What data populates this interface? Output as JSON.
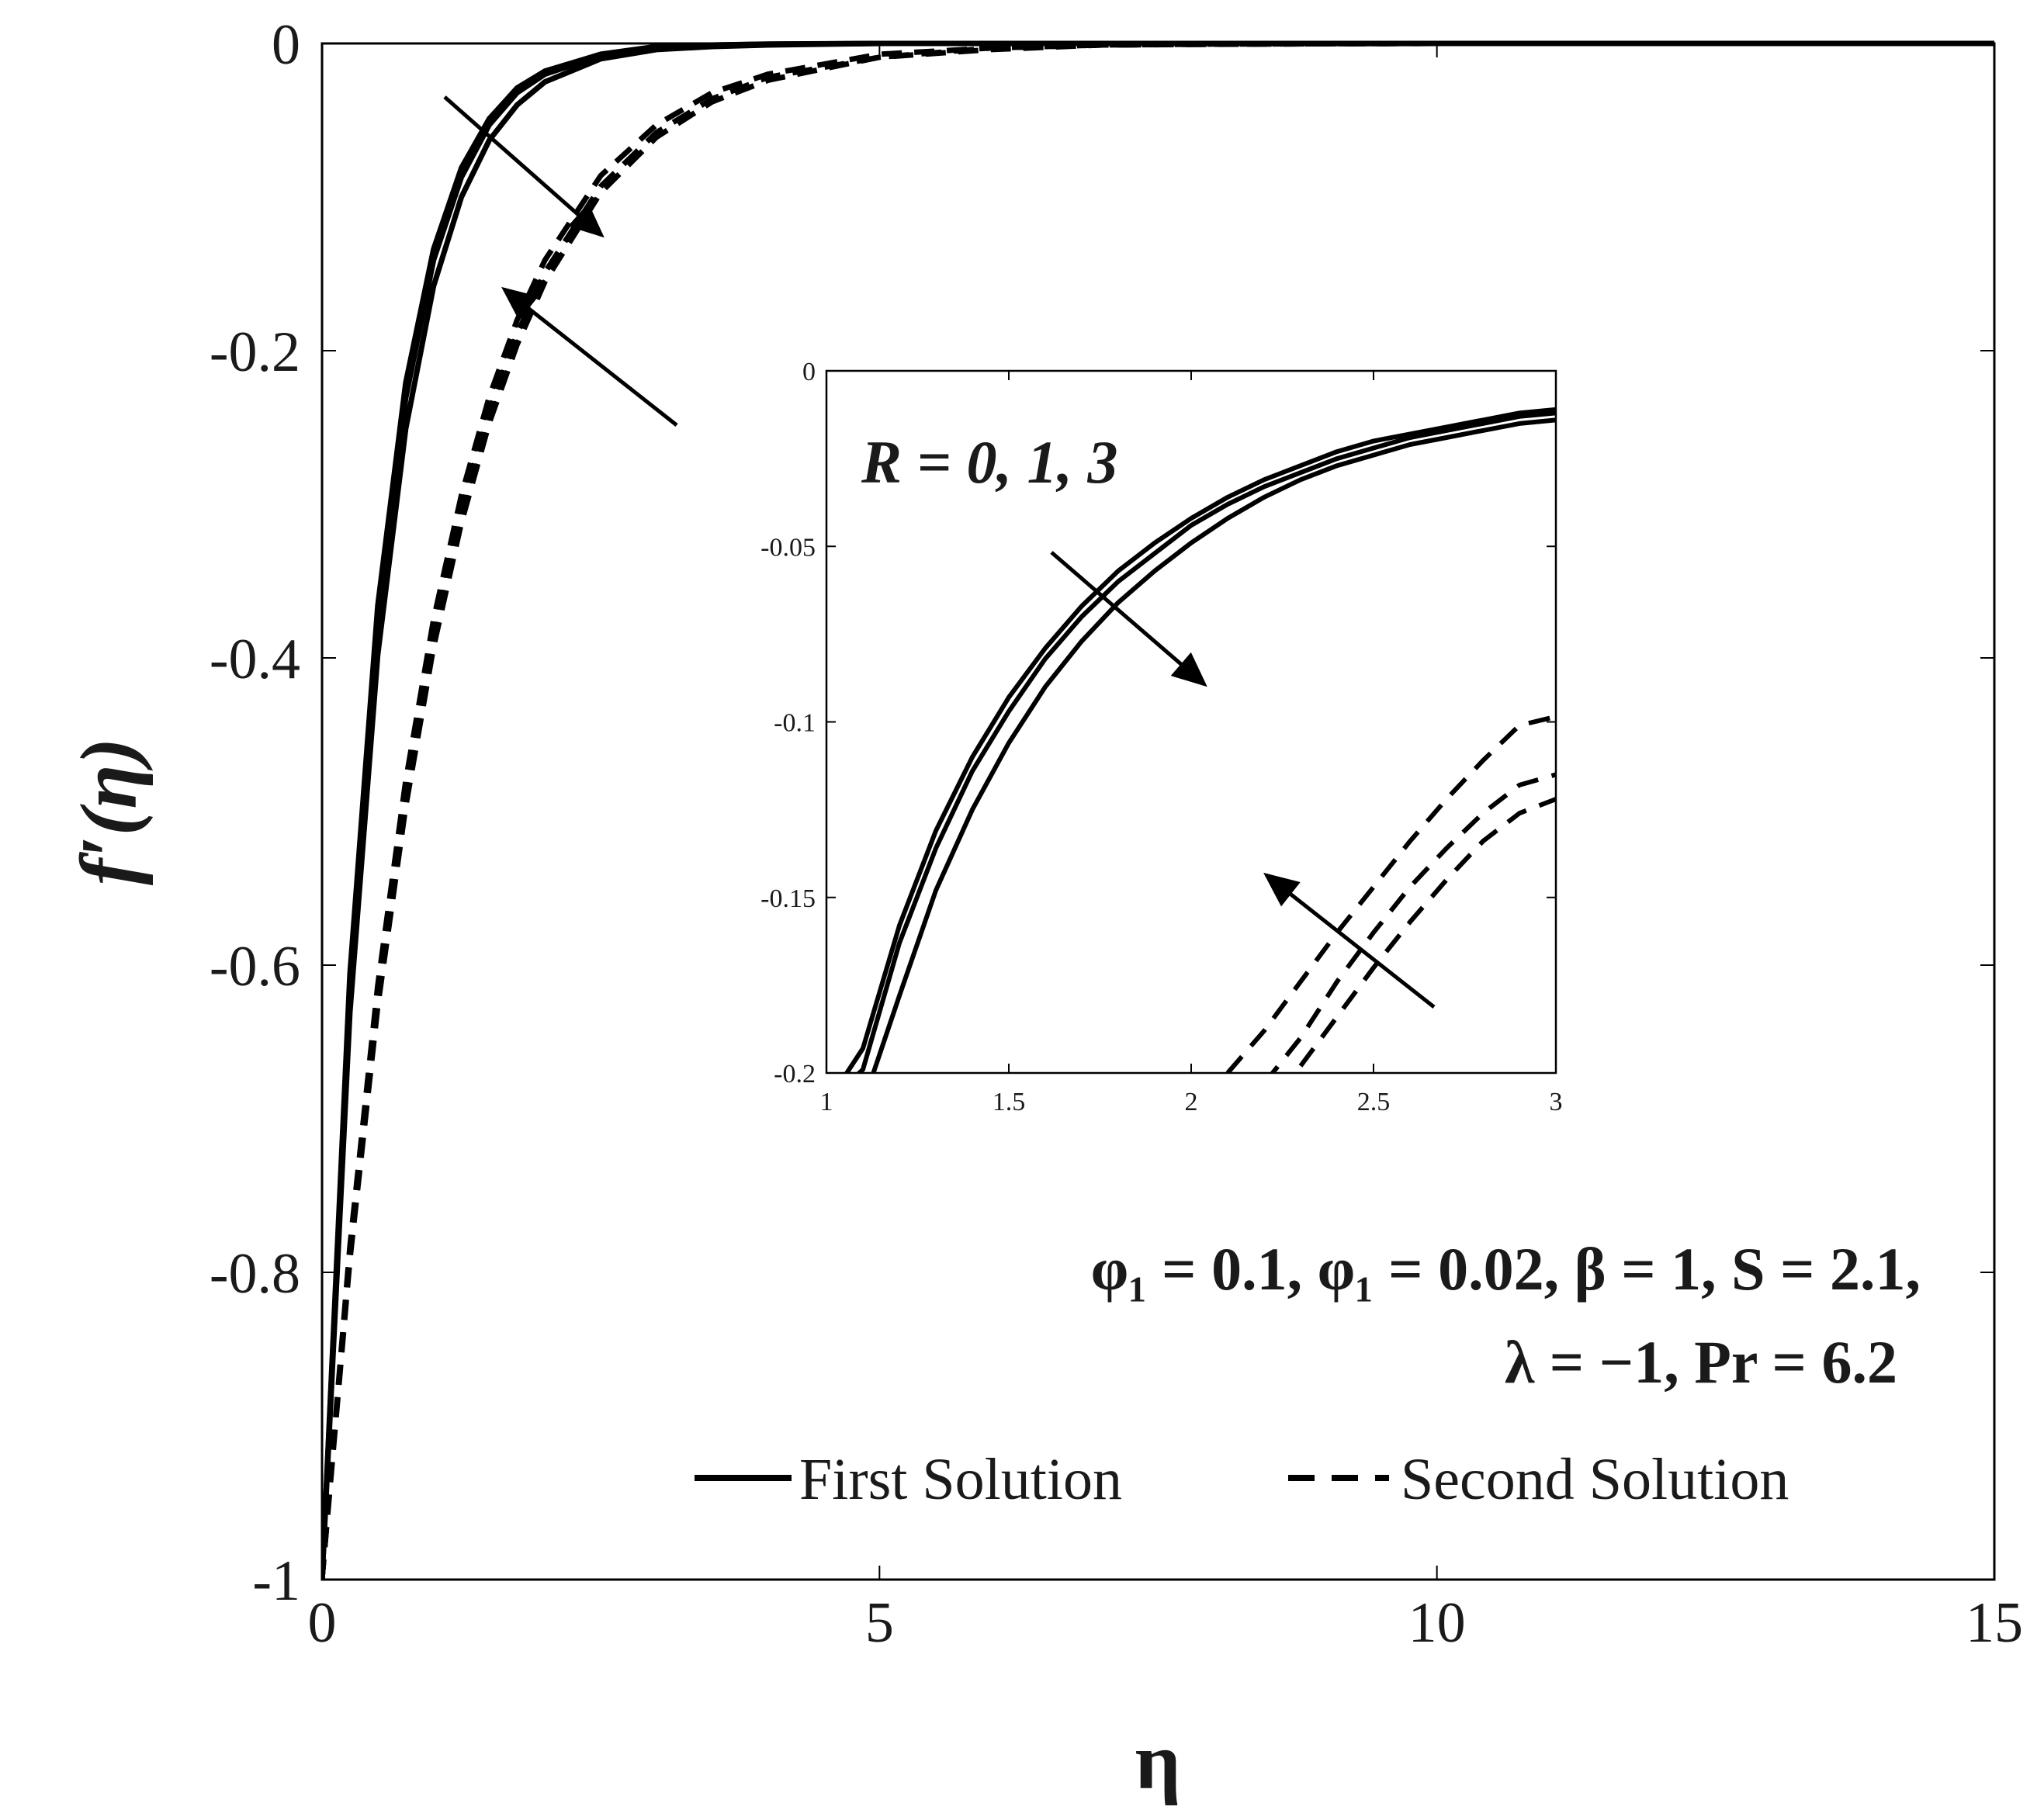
{
  "chart_data": [
    {
      "id": "main",
      "type": "line",
      "xlabel": "η",
      "ylabel": "f′(η)",
      "xlim": [
        0,
        15
      ],
      "ylim": [
        -1,
        0
      ],
      "xticks": [
        0,
        5,
        10,
        15
      ],
      "xtick_labels": [
        "0",
        "5",
        "10",
        "15"
      ],
      "yticks": [
        0,
        -0.2,
        -0.4,
        -0.6,
        -0.8,
        -1
      ],
      "ytick_labels": [
        "0",
        "-0.2",
        "-0.4",
        "-0.6",
        "-0.8",
        "-1"
      ],
      "grid": false,
      "legend": {
        "placement": "bottom-right",
        "entries": [
          {
            "label": "First Solution",
            "style": "solid"
          },
          {
            "label": "Second Solution",
            "style": "dashed"
          }
        ]
      },
      "annotations": {
        "line1": "φ₁ = 0.1, φ₁ = 0.02, β = 1, S = 2.1,",
        "line2": "λ = −1, Pr = 6.2"
      },
      "x": [
        0,
        0.25,
        0.5,
        0.75,
        1,
        1.25,
        1.5,
        1.75,
        2,
        2.5,
        3,
        3.5,
        4,
        5,
        6,
        7,
        8,
        9,
        10,
        12,
        15
      ],
      "series": [
        {
          "style": "solid",
          "values": [
            -1,
            -0.606,
            -0.366,
            -0.221,
            -0.134,
            -0.081,
            -0.049,
            -0.029,
            -0.018,
            -0.007,
            -0.002,
            -0.001,
            -0.0004,
            0,
            0,
            0,
            0,
            0,
            0,
            0,
            0
          ]
        },
        {
          "style": "solid",
          "values": [
            -1,
            -0.614,
            -0.376,
            -0.231,
            -0.141,
            -0.087,
            -0.053,
            -0.032,
            -0.02,
            -0.008,
            -0.003,
            -0.001,
            -0.0005,
            0,
            0,
            0,
            0,
            0,
            0,
            0,
            0
          ]
        },
        {
          "style": "solid",
          "values": [
            -1,
            -0.631,
            -0.398,
            -0.251,
            -0.158,
            -0.1,
            -0.063,
            -0.04,
            -0.025,
            -0.01,
            -0.004,
            -0.002,
            -0.001,
            0,
            0,
            0,
            0,
            0,
            0,
            0,
            0
          ]
        },
        {
          "style": "dashed",
          "values": [
            -1,
            -0.783,
            -0.613,
            -0.48,
            -0.375,
            -0.294,
            -0.23,
            -0.18,
            -0.141,
            -0.086,
            -0.053,
            -0.032,
            -0.02,
            -0.007,
            -0.003,
            -0.001,
            -0.0004,
            -0.0002,
            0,
            0,
            0
          ]
        },
        {
          "style": "dashed",
          "values": [
            -1,
            -0.788,
            -0.621,
            -0.49,
            -0.386,
            -0.304,
            -0.24,
            -0.189,
            -0.149,
            -0.093,
            -0.058,
            -0.036,
            -0.022,
            -0.009,
            -0.003,
            -0.001,
            -0.0005,
            -0.0002,
            0,
            0,
            0
          ]
        },
        {
          "style": "dashed",
          "values": [
            -1,
            -0.792,
            -0.627,
            -0.497,
            -0.393,
            -0.312,
            -0.247,
            -0.196,
            -0.155,
            -0.097,
            -0.061,
            -0.038,
            -0.024,
            -0.009,
            -0.004,
            -0.001,
            -0.0006,
            -0.0002,
            0,
            0,
            0
          ]
        }
      ]
    },
    {
      "id": "inset",
      "type": "line",
      "xlim": [
        1,
        3
      ],
      "ylim": [
        -0.2,
        0
      ],
      "xticks": [
        1,
        1.5,
        2,
        2.5,
        3
      ],
      "xtick_labels": [
        "1",
        "1.5",
        "2",
        "2.5",
        "3"
      ],
      "yticks": [
        0,
        -0.05,
        -0.1,
        -0.15,
        -0.2
      ],
      "ytick_labels": [
        "0",
        "-0.05",
        "-0.1",
        "-0.15",
        "-0.2"
      ],
      "grid": false,
      "annotation": "R = 0, 1, 3",
      "x": [
        1,
        1.1,
        1.2,
        1.3,
        1.4,
        1.5,
        1.6,
        1.7,
        1.8,
        1.9,
        2,
        2.1,
        2.2,
        2.3,
        2.4,
        2.5,
        2.6,
        2.7,
        2.8,
        2.9,
        3
      ],
      "series": [
        {
          "style": "solid",
          "values": [
            -0.24,
            -0.193,
            -0.158,
            -0.131,
            -0.11,
            -0.093,
            -0.079,
            -0.067,
            -0.057,
            -0.049,
            -0.042,
            -0.036,
            -0.031,
            -0.027,
            -0.023,
            -0.02,
            -0.018,
            -0.016,
            -0.014,
            -0.012,
            -0.011
          ]
        },
        {
          "style": "solid",
          "values": [
            -0.25,
            -0.199,
            -0.163,
            -0.136,
            -0.114,
            -0.097,
            -0.082,
            -0.07,
            -0.06,
            -0.052,
            -0.044,
            -0.038,
            -0.033,
            -0.029,
            -0.025,
            -0.022,
            -0.019,
            -0.017,
            -0.015,
            -0.013,
            -0.012
          ]
        },
        {
          "style": "solid",
          "values": [
            -0.27,
            -0.216,
            -0.178,
            -0.148,
            -0.125,
            -0.106,
            -0.09,
            -0.077,
            -0.066,
            -0.057,
            -0.049,
            -0.042,
            -0.036,
            -0.031,
            -0.027,
            -0.024,
            -0.021,
            -0.019,
            -0.017,
            -0.015,
            -0.014
          ]
        },
        {
          "style": "dashed",
          "values": [
            null,
            null,
            null,
            null,
            null,
            null,
            null,
            null,
            null,
            null,
            null,
            -0.2,
            -0.188,
            -0.174,
            -0.16,
            -0.147,
            -0.134,
            -0.122,
            -0.111,
            -0.101,
            -0.0985
          ]
        },
        {
          "style": "dashed",
          "values": [
            null,
            null,
            null,
            null,
            null,
            null,
            null,
            null,
            null,
            null,
            null,
            null,
            -0.203,
            -0.19,
            -0.174,
            -0.16,
            -0.147,
            -0.136,
            -0.126,
            -0.118,
            -0.115
          ]
        },
        {
          "style": "dashed",
          "values": [
            null,
            null,
            null,
            null,
            null,
            null,
            null,
            null,
            null,
            null,
            null,
            null,
            null,
            -0.198,
            -0.184,
            -0.17,
            -0.157,
            -0.145,
            -0.134,
            -0.126,
            -0.122
          ]
        }
      ]
    }
  ]
}
